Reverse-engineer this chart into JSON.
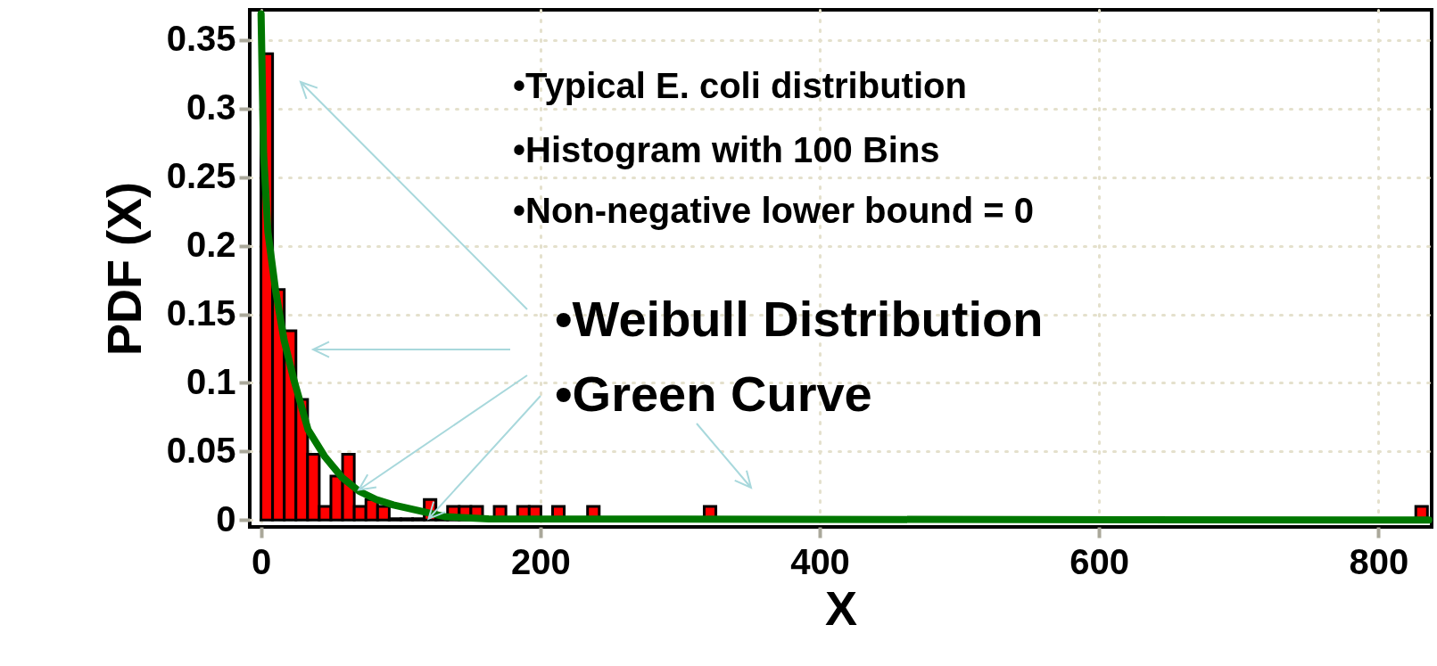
{
  "chart_data": {
    "type": "histogram",
    "xlabel": "X",
    "ylabel": "PDF (X)",
    "color": "#ff0000",
    "bins": [
      0,
      8.35,
      16.7,
      25.05,
      33.4,
      41.75,
      50.1,
      58.45,
      66.8,
      75.15,
      83.5,
      91.85,
      100.2,
      108.55,
      116.9,
      125.25,
      133.6,
      141.95,
      150.3,
      158.65,
      167,
      175.35,
      183.7,
      192.05,
      200.4,
      208.75,
      217.1,
      225.45,
      233.8,
      242.15,
      250.5,
      258.85,
      267.2,
      275.55,
      283.9,
      292.25,
      300.6,
      308.95,
      317.3,
      325.65,
      334,
      342.35,
      350.7,
      359.05,
      367.4,
      375.75,
      384.1,
      392.45,
      400.8,
      409.15,
      417.5,
      425.85,
      434.2,
      442.55,
      450.9,
      459.25,
      467.6,
      475.95,
      484.3,
      492.65,
      501,
      509.35,
      517.7,
      526.05,
      534.4,
      542.75,
      551.1,
      559.45,
      567.8,
      576.15,
      584.5,
      592.85,
      601.2,
      609.55,
      617.9,
      626.25,
      634.6,
      642.95,
      651.3,
      659.65,
      668,
      676.35,
      684.7,
      693.05,
      701.4,
      709.75,
      718.1,
      726.45,
      734.8,
      743.15,
      751.5,
      759.85,
      768.2,
      776.55,
      784.9,
      793.25,
      801.6,
      809.95,
      818.3,
      826.65,
      835
    ],
    "values": [
      0.34,
      0.168,
      0.138,
      0.088,
      0.048,
      0.01,
      0.032,
      0.048,
      0.01,
      0.015,
      0.01,
      0.001,
      0.001,
      0.001,
      0.015,
      0.001,
      0.01,
      0.01,
      0.01,
      0,
      0.01,
      0,
      0.01,
      0.01,
      0,
      0.01,
      0,
      0,
      0.01,
      0,
      0,
      0,
      0,
      0,
      0,
      0,
      0,
      0,
      0.01,
      0,
      0,
      0,
      0,
      0,
      0,
      0,
      0,
      0,
      0,
      0,
      0,
      0,
      0,
      0,
      0,
      0,
      0,
      0,
      0,
      0,
      0,
      0,
      0,
      0,
      0,
      0,
      0,
      0,
      0,
      0,
      0,
      0,
      0,
      0,
      0,
      0,
      0,
      0,
      0,
      0,
      0,
      0,
      0,
      0,
      0,
      0,
      0,
      0,
      0,
      0,
      0,
      0,
      0,
      0,
      0,
      0,
      0,
      0,
      0,
      0.01
    ],
    "series": [
      {
        "type": "line",
        "color": "#007700",
        "x": [
          0.1,
          1.9,
          5,
          10.4,
          16.6,
          23.9,
          33.7,
          45.9,
          58.1,
          70.3,
          82.5,
          94.8,
          116.8,
          131.5,
          163,
          836
        ],
        "values": [
          0.369,
          0.267,
          0.21,
          0.168,
          0.131,
          0.101,
          0.066,
          0.046,
          0.031,
          0.021,
          0.015,
          0.011,
          0.006,
          0.0025,
          0.0008,
          0
        ]
      }
    ],
    "xlim": [
      -8,
      838
    ],
    "xticks": [
      0,
      200,
      400,
      600,
      800
    ],
    "ylim": [
      -0.005,
      0.372
    ],
    "yticks": [
      0,
      0.05,
      0.1,
      0.15,
      0.2,
      0.25,
      0.3,
      0.35
    ],
    "grid": true,
    "annotations": [
      "•Typical E. coli distribution",
      "•Histogram with 100 Bins",
      "•Non-negative lower bound = 0",
      {
        "text": "•Weibull Distribution",
        "x": 70,
        "y": 0.022
      },
      {
        "text": "•Green Curve",
        "x": 120,
        "y": 0.001
      }
    ]
  }
}
